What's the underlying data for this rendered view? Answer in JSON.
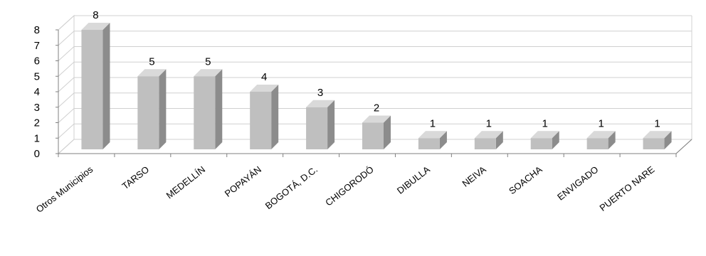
{
  "chart_data": {
    "type": "bar",
    "title": "",
    "xlabel": "",
    "ylabel": "",
    "categories": [
      "Otros Municipios",
      "TARSO",
      "MEDELLÍN",
      "POPAYÁN",
      "BOGOTÁ, D.C.",
      "CHIGORODÓ",
      "DIBULLA",
      "NEIVA",
      "SOACHA",
      "ENVIGADO",
      "PUERTO NARE"
    ],
    "values": [
      8,
      5,
      5,
      4,
      3,
      2,
      1,
      1,
      1,
      1,
      1
    ],
    "ylim": [
      0,
      8
    ],
    "yticks": [
      "0",
      "1",
      "2",
      "3",
      "4",
      "5",
      "6",
      "7",
      "8"
    ],
    "grid": true,
    "style": "3d-column",
    "colors": {
      "bar_front": "#bfbfbf",
      "bar_side": "#8c8c8c",
      "bar_top": "#d9d9d9",
      "grid": "#d0d0d0",
      "axis": "#808080"
    }
  }
}
